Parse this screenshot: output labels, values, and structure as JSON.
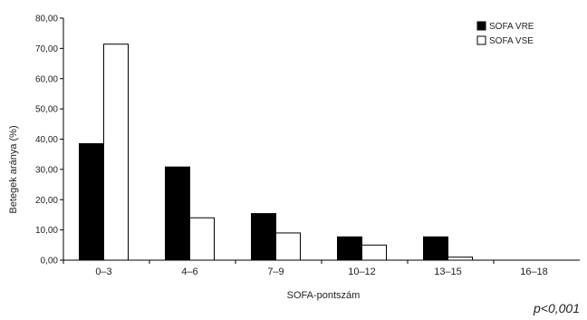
{
  "chart_data": {
    "type": "bar",
    "categories": [
      "0–3",
      "4–6",
      "7–9",
      "10–12",
      "13–15",
      "16–18"
    ],
    "series": [
      {
        "name": "SOFA VRE",
        "values": [
          38.5,
          30.8,
          15.4,
          7.7,
          7.7,
          0
        ],
        "color": "#000000"
      },
      {
        "name": "SOFA VSE",
        "values": [
          71.4,
          14.0,
          9.0,
          5.0,
          1.0,
          0
        ],
        "color": "#ffffff"
      }
    ],
    "xlabel": "SOFA-pontszám",
    "ylabel": "Betegek aránya (%)",
    "ylim": [
      0,
      80
    ],
    "yticks": [
      "0,00",
      "10,00",
      "20,00",
      "30,00",
      "40,00",
      "50,00",
      "60,00",
      "70,00",
      "80,00"
    ],
    "annotation": "p<0,001",
    "legend_position": "top-right",
    "grid": false
  }
}
